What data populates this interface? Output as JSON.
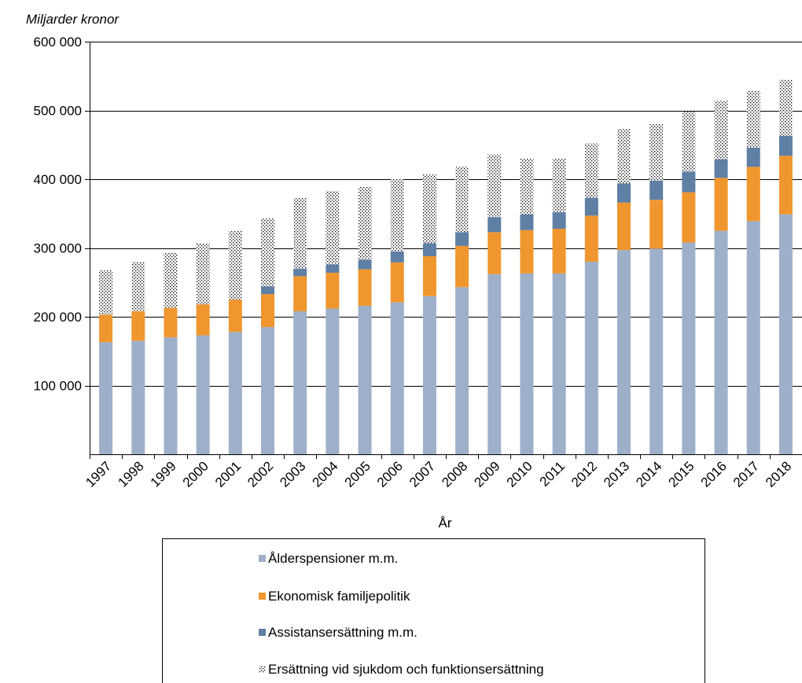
{
  "chart_data": {
    "type": "bar",
    "stacked": true,
    "ylabel": "Miljarder kronor",
    "xlabel": "År",
    "ylim": [
      0,
      600000
    ],
    "yticks": [
      "100 000",
      "200 000",
      "300 000",
      "400 000",
      "500 000",
      "600 000"
    ],
    "ytick_values": [
      100000,
      200000,
      300000,
      400000,
      500000,
      600000
    ],
    "grid": true,
    "legend_position": "bottom",
    "categories": [
      "1997",
      "1998",
      "1999",
      "2000",
      "2001",
      "2002",
      "2003",
      "2004",
      "2005",
      "2006",
      "2007",
      "2008",
      "2009",
      "2010",
      "2011",
      "2012",
      "2013",
      "2014",
      "2015",
      "2016",
      "2017",
      "2018"
    ],
    "series": [
      {
        "name": "Ålderspensioner m.m.",
        "color": "#9eb0c9",
        "pattern": "solid",
        "values": [
          163000,
          165000,
          170000,
          173000,
          178000,
          185000,
          208000,
          212000,
          216000,
          221000,
          230000,
          243000,
          262000,
          263000,
          263000,
          280000,
          297000,
          299000,
          308000,
          325000,
          339000,
          349000
        ]
      },
      {
        "name": "Ekonomisk familjepolitik",
        "color": "#f0962e",
        "pattern": "solid",
        "values": [
          40000,
          43000,
          43000,
          45000,
          47000,
          48000,
          51000,
          52000,
          53000,
          58000,
          58000,
          60000,
          61000,
          63000,
          65000,
          67000,
          69000,
          71000,
          73000,
          77000,
          79000,
          85000
        ]
      },
      {
        "name": "Assistansersättning m.m.",
        "color": "#5f7fa5",
        "pattern": "solid",
        "values": [
          0,
          0,
          0,
          0,
          0,
          11000,
          11000,
          12000,
          14000,
          16000,
          19000,
          20000,
          22000,
          23000,
          24000,
          26000,
          28000,
          28000,
          30000,
          27000,
          28000,
          29000
        ]
      },
      {
        "name": "Ersättning vid sjukdom och funktionsersättning",
        "color": "#000000",
        "pattern": "dots",
        "values": [
          65000,
          72000,
          80000,
          89000,
          100000,
          99000,
          103000,
          107000,
          106000,
          105000,
          100000,
          95000,
          91000,
          81000,
          78000,
          79000,
          79000,
          82000,
          87000,
          85000,
          83000,
          82000
        ]
      }
    ]
  }
}
